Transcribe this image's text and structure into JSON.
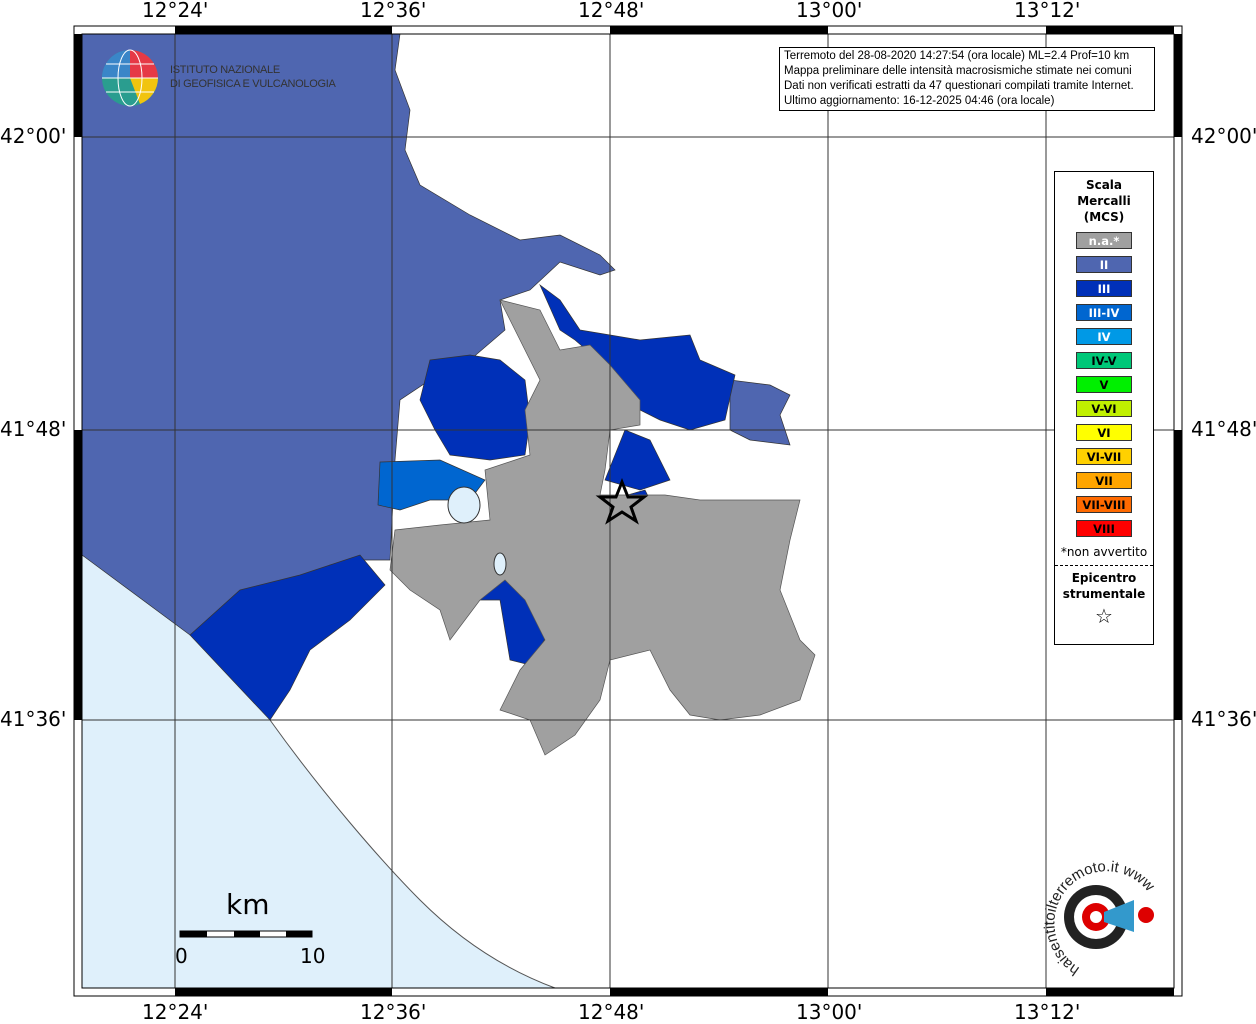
{
  "axes": {
    "longitude_ticks": [
      "12°24'",
      "12°36'",
      "12°48'",
      "13°00'",
      "13°12'"
    ],
    "latitude_ticks": [
      "42°00'",
      "41°48'",
      "41°36'"
    ]
  },
  "logo": {
    "text_line1": "ISTITUTO NAZIONALE",
    "text_line2": "DI GEOFISICA E VULCANOLOGIA"
  },
  "info": {
    "line1": "Terremoto del 28-08-2020 14:27:54 (ora locale) ML=2.4 Prof=10 km",
    "line2": "Mappa preliminare delle intensità macrosismiche stimate nei comuni",
    "line3": "Dati non verificati estratti da 47 questionari compilati tramite Internet.",
    "line4": "Ultimo aggiornamento: 16-12-2025 04:46 (ora locale)"
  },
  "legend": {
    "title1": "Scala",
    "title2": "Mercalli",
    "title3": "(MCS)",
    "items": [
      {
        "label": "n.a.*",
        "color": "#a0a0a0",
        "text": "#ffffff"
      },
      {
        "label": "II",
        "color": "#4f66b0",
        "text": "#ffffff"
      },
      {
        "label": "III",
        "color": "#0030b8",
        "text": "#ffffff"
      },
      {
        "label": "III-IV",
        "color": "#0066d0",
        "text": "#ffffff"
      },
      {
        "label": "IV",
        "color": "#0099e6",
        "text": "#ffffff"
      },
      {
        "label": "IV-V",
        "color": "#00c878",
        "text": "#000000"
      },
      {
        "label": "V",
        "color": "#00f000",
        "text": "#000000"
      },
      {
        "label": "V-VI",
        "color": "#c0f000",
        "text": "#000000"
      },
      {
        "label": "VI",
        "color": "#ffff00",
        "text": "#000000"
      },
      {
        "label": "VI-VII",
        "color": "#ffd000",
        "text": "#000000"
      },
      {
        "label": "VII",
        "color": "#ffa500",
        "text": "#000000"
      },
      {
        "label": "VII-VIII",
        "color": "#ff6a00",
        "text": "#000000"
      },
      {
        "label": "VIII",
        "color": "#ff0000",
        "text": "#000000"
      }
    ],
    "note": "*non avvertito",
    "epicenter1": "Epicentro",
    "epicenter2": "strumentale",
    "epicenter_icon": "star-outline"
  },
  "scalebar": {
    "unit": "km",
    "min": "0",
    "max": "10"
  },
  "watermark": {
    "text": "haisentitoilterremoto.it www"
  },
  "colors": {
    "sea": "#dff0fb",
    "intensity_II": "#4f66b0",
    "intensity_III": "#0030b8",
    "intensity_III_IV": "#0066d0",
    "na": "#a0a0a0"
  }
}
